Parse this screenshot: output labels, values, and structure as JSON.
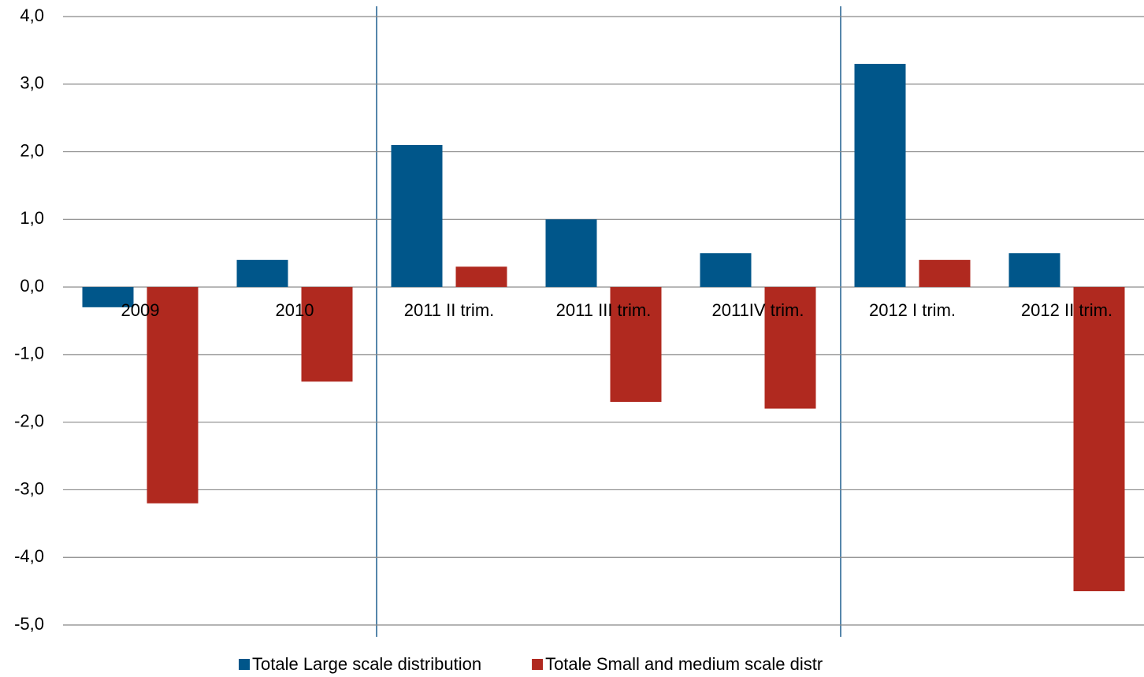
{
  "chart_data": {
    "type": "bar",
    "categories": [
      "2009",
      "2010",
      "2011 II trim.",
      "2011 III trim.",
      "2011IV trim.",
      "2012 I trim.",
      "2012 II trim."
    ],
    "series": [
      {
        "name": "Totale Large scale distribution",
        "color": "#00568a",
        "values": [
          -0.3,
          0.4,
          2.1,
          1.0,
          0.5,
          3.3,
          0.5
        ]
      },
      {
        "name": "Totale Small and medium scale distr",
        "color": "#b0291f",
        "values": [
          -3.2,
          -1.4,
          0.3,
          -1.7,
          -1.8,
          0.4,
          -4.5
        ]
      }
    ],
    "ylim": [
      -5,
      4
    ],
    "yticks": [
      {
        "value": -5,
        "label": "-5,0"
      },
      {
        "value": -4,
        "label": "-4,0"
      },
      {
        "value": -3,
        "label": "-3,0"
      },
      {
        "value": -2,
        "label": "-2,0"
      },
      {
        "value": -1,
        "label": "-1,0"
      },
      {
        "value": 0,
        "label": "0,0"
      },
      {
        "value": 1,
        "label": "1,0"
      },
      {
        "value": 2,
        "label": "2,0"
      },
      {
        "value": 3,
        "label": "3,0"
      },
      {
        "value": 4,
        "label": "4,0"
      }
    ],
    "grid": true
  }
}
